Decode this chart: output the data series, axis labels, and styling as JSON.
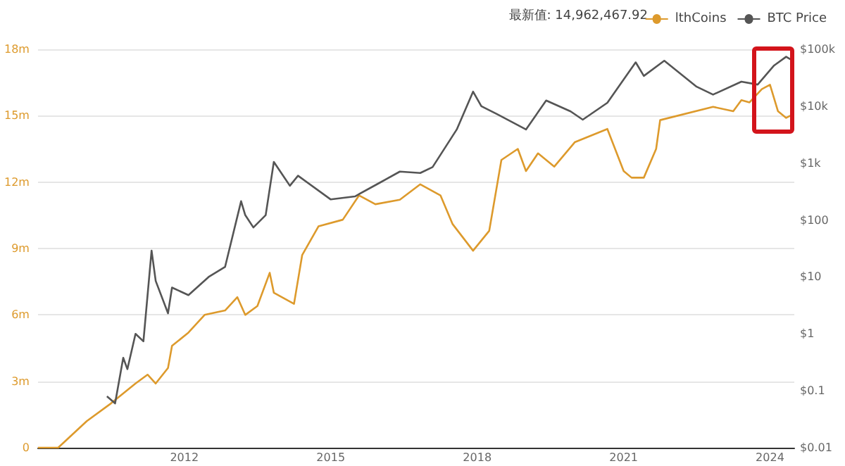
{
  "chart_data": {
    "type": "line",
    "annotations": [
      "最新值: 14,962,467.92"
    ],
    "legend": "top right",
    "grid": "y",
    "marker": "none",
    "xlim": [
      "2009-01",
      "2024-07"
    ],
    "xticks": [
      "2012",
      "2015",
      "2018",
      "2021",
      "2024"
    ],
    "ylim": [
      0,
      18000000
    ],
    "yticks": [
      {
        "value": 0,
        "label": "0"
      },
      {
        "value": 3000000,
        "label": "3m"
      },
      {
        "value": 6000000,
        "label": "6m"
      },
      {
        "value": 9000000,
        "label": "9m"
      },
      {
        "value": 12000000,
        "label": "12m"
      },
      {
        "value": 15000000,
        "label": "15m"
      },
      {
        "value": 18000000,
        "label": "18m"
      }
    ],
    "y2lim": [
      0.01,
      100000
    ],
    "log": "y2",
    "y2ticks": [
      {
        "value": 0.01,
        "label": "$0.01"
      },
      {
        "value": 0.1,
        "label": "$0.1"
      },
      {
        "value": 1,
        "label": "$1"
      },
      {
        "value": 10,
        "label": "$10"
      },
      {
        "value": 100,
        "label": "$100"
      },
      {
        "value": 1000,
        "label": "$1k"
      },
      {
        "value": 10000,
        "label": "$10k"
      },
      {
        "value": 100000,
        "label": "$100k"
      }
    ],
    "series": [
      {
        "name": "lthCoins",
        "color": "#dd9a2c",
        "x": [
          "2009-01",
          "2009-06",
          "2010-01",
          "2010-07",
          "2011-01",
          "2011-04",
          "2011-06",
          "2011-09",
          "2011-10",
          "2012-02",
          "2012-06",
          "2012-11",
          "2013-02",
          "2013-04",
          "2013-07",
          "2013-10",
          "2013-11",
          "2014-04",
          "2014-06",
          "2014-10",
          "2015-04",
          "2015-08",
          "2015-12",
          "2016-06",
          "2016-11",
          "2017-04",
          "2017-07",
          "2017-12",
          "2018-04",
          "2018-07",
          "2018-11",
          "2019-01",
          "2019-04",
          "2019-08",
          "2020-01",
          "2020-09",
          "2021-01",
          "2021-03",
          "2021-06",
          "2021-09",
          "2021-10",
          "2022-11",
          "2023-04",
          "2023-06",
          "2023-08",
          "2023-11",
          "2024-01",
          "2024-03",
          "2024-05",
          "2024-06"
        ],
        "values": [
          0,
          0,
          1200000,
          2000000,
          2900000,
          3300000,
          2900000,
          3600000,
          4600000,
          5200000,
          6000000,
          6200000,
          6800000,
          6000000,
          6400000,
          7900000,
          7000000,
          6500000,
          8700000,
          10000000,
          10300000,
          11400000,
          11000000,
          11200000,
          11900000,
          11400000,
          10100000,
          8900000,
          9800000,
          13000000,
          13500000,
          12500000,
          13300000,
          12700000,
          13800000,
          14400000,
          12500000,
          12200000,
          12200000,
          13500000,
          14800000,
          15400000,
          15200000,
          15700000,
          15600000,
          16200000,
          16400000,
          15200000,
          14900000,
          15000000
        ]
      },
      {
        "name": "BTC Price",
        "color": "#555555",
        "axis": "y2",
        "x": [
          "2010-06",
          "2010-08",
          "2010-10",
          "2010-11",
          "2011-01",
          "2011-03",
          "2011-05",
          "2011-06",
          "2011-09",
          "2011-10",
          "2012-02",
          "2012-07",
          "2012-11",
          "2013-03",
          "2013-04",
          "2013-06",
          "2013-09",
          "2013-11",
          "2014-03",
          "2014-05",
          "2015-01",
          "2015-07",
          "2016-01",
          "2016-06",
          "2016-11",
          "2017-02",
          "2017-08",
          "2017-12",
          "2018-02",
          "2018-06",
          "2019-01",
          "2019-06",
          "2019-12",
          "2020-03",
          "2020-09",
          "2021-04",
          "2021-06",
          "2021-11",
          "2022-07",
          "2022-11",
          "2023-06",
          "2023-10",
          "2024-02",
          "2024-05",
          "2024-06"
        ],
        "values": [
          0.08,
          0.06,
          0.38,
          0.24,
          1.0,
          0.74,
          29,
          8.5,
          2.3,
          6.5,
          4.8,
          10,
          15,
          214,
          122,
          74,
          122,
          1050,
          400,
          600,
          230,
          260,
          450,
          710,
          670,
          850,
          3900,
          18000,
          10000,
          7200,
          3900,
          12600,
          8100,
          5800,
          11500,
          59000,
          34000,
          63000,
          22000,
          16000,
          27000,
          24000,
          52000,
          74000,
          67000
        ]
      }
    ]
  }
}
